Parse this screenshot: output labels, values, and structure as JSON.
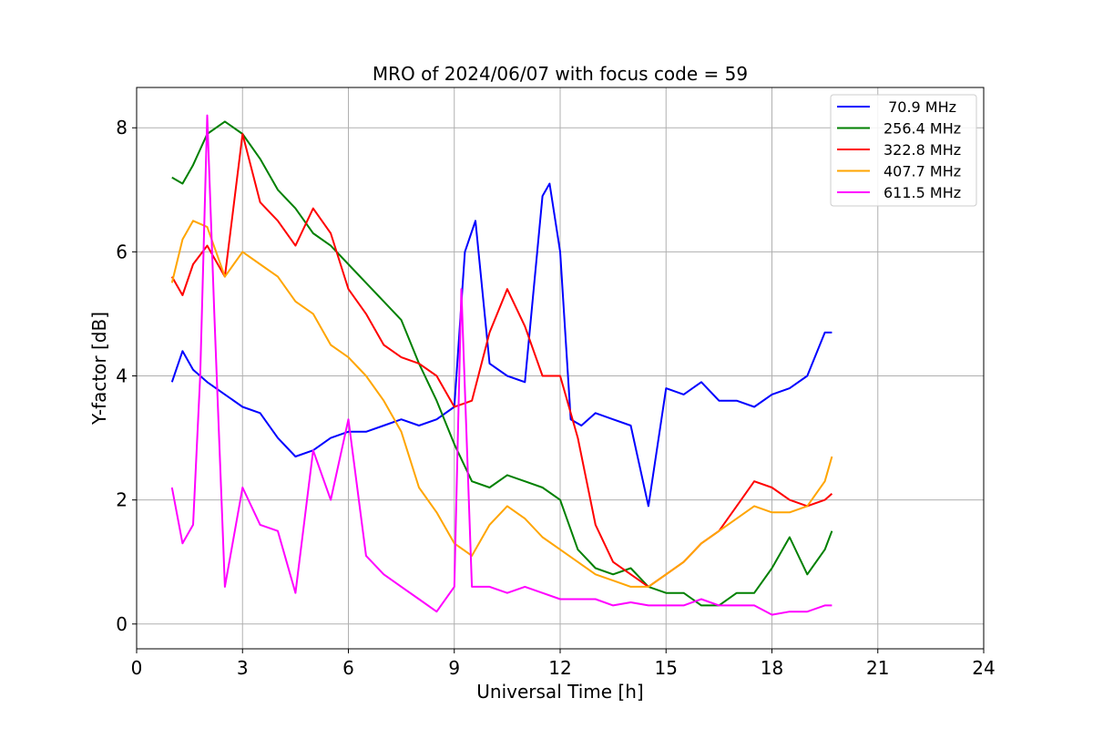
{
  "chart_data": {
    "type": "line",
    "title": "MRO of 2024/06/07 with focus code = 59",
    "xlabel": "Universal Time [h]",
    "ylabel": "Y-factor [dB]",
    "xlim": [
      0,
      24
    ],
    "ylim": [
      -0.4,
      8.65
    ],
    "xticks": [
      0,
      3,
      6,
      9,
      12,
      15,
      18,
      21,
      24
    ],
    "xtick_labels": [
      "0",
      "3",
      "6",
      "9",
      "12",
      "15",
      "18",
      "21",
      "24"
    ],
    "yticks": [
      0,
      2,
      4,
      6,
      8
    ],
    "ytick_labels": [
      "0",
      "2",
      "4",
      "6",
      "8"
    ],
    "grid": true,
    "legend_position": "top-right",
    "series": [
      {
        "name": " 70.9 MHz",
        "color": "#0000ff",
        "x": [
          1.0,
          1.3,
          1.6,
          2.0,
          2.5,
          3.0,
          3.5,
          4.0,
          4.5,
          5.0,
          5.5,
          6.0,
          6.5,
          7.0,
          7.5,
          8.0,
          8.5,
          9.0,
          9.3,
          9.6,
          10.0,
          10.5,
          11.0,
          11.5,
          11.7,
          12.0,
          12.3,
          12.6,
          13.0,
          13.5,
          14.0,
          14.5,
          15.0,
          15.5,
          16.0,
          16.5,
          17.0,
          17.5,
          18.0,
          18.5,
          19.0,
          19.5,
          19.7
        ],
        "y": [
          3.9,
          4.4,
          4.1,
          3.9,
          3.7,
          3.5,
          3.4,
          3.0,
          2.7,
          2.8,
          3.0,
          3.1,
          3.1,
          3.2,
          3.3,
          3.2,
          3.3,
          3.5,
          6.0,
          6.5,
          4.2,
          4.0,
          3.9,
          6.9,
          7.1,
          6.0,
          3.3,
          3.2,
          3.4,
          3.3,
          3.2,
          1.9,
          3.8,
          3.7,
          3.9,
          3.6,
          3.6,
          3.5,
          3.7,
          3.8,
          4.0,
          4.7,
          4.7
        ]
      },
      {
        "name": "256.4 MHz",
        "color": "#008000",
        "x": [
          1.0,
          1.3,
          1.6,
          2.0,
          2.5,
          3.0,
          3.5,
          4.0,
          4.5,
          5.0,
          5.5,
          6.0,
          6.5,
          7.0,
          7.5,
          8.0,
          8.5,
          9.0,
          9.5,
          10.0,
          10.5,
          11.0,
          11.5,
          12.0,
          12.5,
          13.0,
          13.5,
          14.0,
          14.5,
          15.0,
          15.5,
          16.0,
          16.5,
          17.0,
          17.5,
          18.0,
          18.5,
          19.0,
          19.5,
          19.7
        ],
        "y": [
          7.2,
          7.1,
          7.4,
          7.9,
          8.1,
          7.9,
          7.5,
          7.0,
          6.7,
          6.3,
          6.1,
          5.8,
          5.5,
          5.2,
          4.9,
          4.2,
          3.6,
          2.9,
          2.3,
          2.2,
          2.4,
          2.3,
          2.2,
          2.0,
          1.2,
          0.9,
          0.8,
          0.9,
          0.6,
          0.5,
          0.5,
          0.3,
          0.3,
          0.5,
          0.5,
          0.9,
          1.4,
          0.8,
          1.2,
          1.5
        ]
      },
      {
        "name": "322.8 MHz",
        "color": "#ff0000",
        "x": [
          1.0,
          1.3,
          1.6,
          2.0,
          2.5,
          3.0,
          3.5,
          4.0,
          4.5,
          5.0,
          5.5,
          6.0,
          6.5,
          7.0,
          7.5,
          8.0,
          8.5,
          9.0,
          9.5,
          10.0,
          10.5,
          11.0,
          11.5,
          12.0,
          12.5,
          13.0,
          13.5,
          14.0,
          14.5,
          15.0,
          15.5,
          16.0,
          16.5,
          17.0,
          17.5,
          18.0,
          18.5,
          19.0,
          19.5,
          19.7
        ],
        "y": [
          5.6,
          5.3,
          5.8,
          6.1,
          5.6,
          7.9,
          6.8,
          6.5,
          6.1,
          6.7,
          6.3,
          5.4,
          5.0,
          4.5,
          4.3,
          4.2,
          4.0,
          3.5,
          3.6,
          4.7,
          5.4,
          4.8,
          4.0,
          4.0,
          3.0,
          1.6,
          1.0,
          0.8,
          0.6,
          0.8,
          1.0,
          1.3,
          1.5,
          1.9,
          2.3,
          2.2,
          2.0,
          1.9,
          2.0,
          2.1
        ]
      },
      {
        "name": "407.7 MHz",
        "color": "#ffa500",
        "x": [
          1.0,
          1.3,
          1.6,
          2.0,
          2.5,
          3.0,
          3.5,
          4.0,
          4.5,
          5.0,
          5.5,
          6.0,
          6.5,
          7.0,
          7.5,
          8.0,
          8.5,
          9.0,
          9.5,
          10.0,
          10.5,
          11.0,
          11.5,
          12.0,
          12.5,
          13.0,
          13.5,
          14.0,
          14.5,
          15.0,
          15.5,
          16.0,
          16.5,
          17.0,
          17.5,
          18.0,
          18.5,
          19.0,
          19.5,
          19.7
        ],
        "y": [
          5.5,
          6.2,
          6.5,
          6.4,
          5.6,
          6.0,
          5.8,
          5.6,
          5.2,
          5.0,
          4.5,
          4.3,
          4.0,
          3.6,
          3.1,
          2.2,
          1.8,
          1.3,
          1.1,
          1.6,
          1.9,
          1.7,
          1.4,
          1.2,
          1.0,
          0.8,
          0.7,
          0.6,
          0.6,
          0.8,
          1.0,
          1.3,
          1.5,
          1.7,
          1.9,
          1.8,
          1.8,
          1.9,
          2.3,
          2.7
        ]
      },
      {
        "name": "611.5 MHz",
        "color": "#ff00ff",
        "x": [
          1.0,
          1.3,
          1.6,
          1.8,
          2.0,
          2.2,
          2.5,
          3.0,
          3.5,
          4.0,
          4.5,
          5.0,
          5.5,
          6.0,
          6.5,
          7.0,
          7.5,
          8.0,
          8.5,
          9.0,
          9.2,
          9.5,
          10.0,
          10.5,
          11.0,
          11.5,
          12.0,
          12.5,
          13.0,
          13.5,
          14.0,
          14.5,
          15.0,
          15.5,
          16.0,
          16.5,
          17.0,
          17.5,
          18.0,
          18.5,
          19.0,
          19.5,
          19.7
        ],
        "y": [
          2.2,
          1.3,
          1.6,
          4.0,
          8.2,
          5.0,
          0.6,
          2.2,
          1.6,
          1.5,
          0.5,
          2.8,
          2.0,
          3.3,
          1.1,
          0.8,
          0.6,
          0.4,
          0.2,
          0.6,
          5.4,
          0.6,
          0.6,
          0.5,
          0.6,
          0.5,
          0.4,
          0.4,
          0.4,
          0.3,
          0.35,
          0.3,
          0.3,
          0.3,
          0.4,
          0.3,
          0.3,
          0.3,
          0.15,
          0.2,
          0.2,
          0.3,
          0.3
        ]
      }
    ]
  }
}
